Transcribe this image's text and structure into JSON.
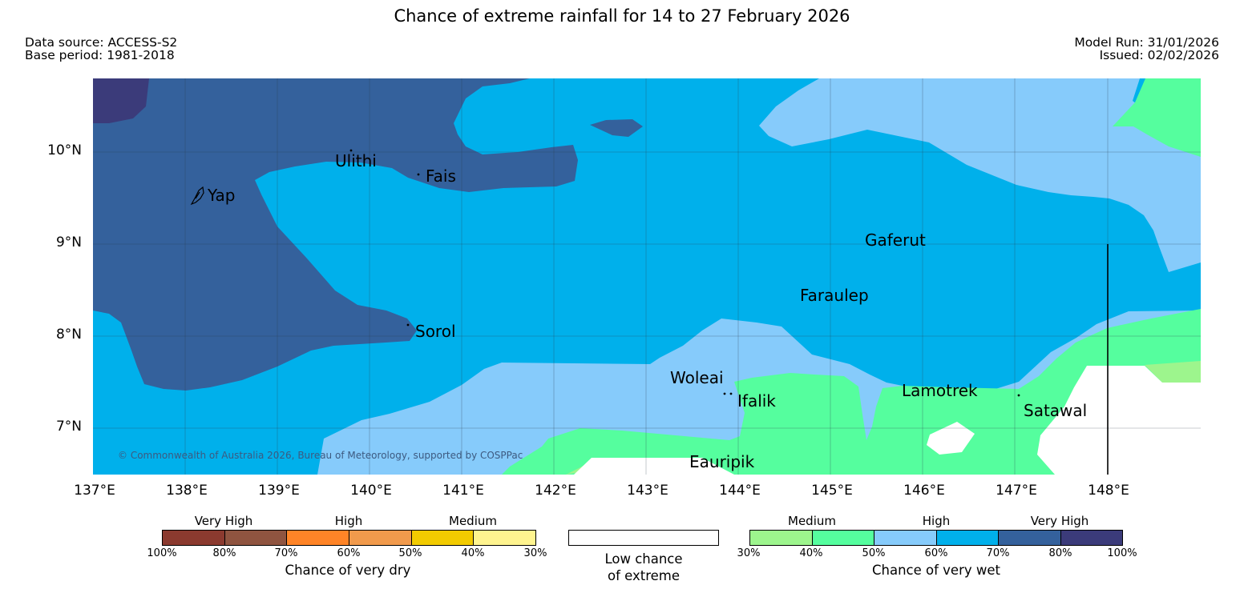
{
  "title": "Chance of extreme rainfall for 14 to 27 February 2026",
  "header": {
    "data_source": "Data source: ACCESS-S2",
    "base_period": "Base period: 1981-2018",
    "model_run": "Model Run: 31/01/2026",
    "issued": "Issued: 02/02/2026"
  },
  "map": {
    "lat_labels": [
      "10°N",
      "9°N",
      "8°N",
      "7°N"
    ],
    "lon_labels": [
      "137°E",
      "138°E",
      "139°E",
      "140°E",
      "141°E",
      "142°E",
      "143°E",
      "144°E",
      "145°E",
      "146°E",
      "147°E",
      "148°E"
    ],
    "places": [
      "Ulithi",
      "Fais",
      "Yap",
      "Gaferut",
      "Faraulep",
      "Sorol",
      "Woleai",
      "Ifalik",
      "Lamotrek",
      "Satawal",
      "Eauripik"
    ],
    "copyright": "© Commonwealth of Australia 2026, Bureau of Meteorology, supported by COSPPac",
    "colors": {
      "wet_100_80": "#3b3b7a",
      "wet_80_70": "#34619c",
      "wet_70_60": "#00b0eb",
      "wet_60_50": "#86cbfb",
      "wet_50_40": "#55fe9e",
      "wet_40_30": "#9df58d",
      "low": "#ffffff"
    }
  },
  "legend": {
    "dry": {
      "categories": [
        "Very High",
        "High",
        "Medium"
      ],
      "ticks": [
        "100%",
        "80%",
        "70%",
        "60%",
        "50%",
        "40%",
        "30%"
      ],
      "colors": [
        "#8b3a2f",
        "#8f5440",
        "#ff8427",
        "#f19a4c",
        "#f2cb00",
        "#fff48f"
      ],
      "caption": "Chance of very dry"
    },
    "low": {
      "caption_line1": "Low chance",
      "caption_line2": "of extreme"
    },
    "wet": {
      "categories": [
        "Medium",
        "High",
        "Very High"
      ],
      "ticks": [
        "30%",
        "40%",
        "50%",
        "60%",
        "70%",
        "80%",
        "100%"
      ],
      "colors": [
        "#9df58d",
        "#55fe9e",
        "#86cbfb",
        "#00b0eb",
        "#34619c",
        "#3b3b7a"
      ],
      "caption": "Chance of very wet"
    }
  }
}
